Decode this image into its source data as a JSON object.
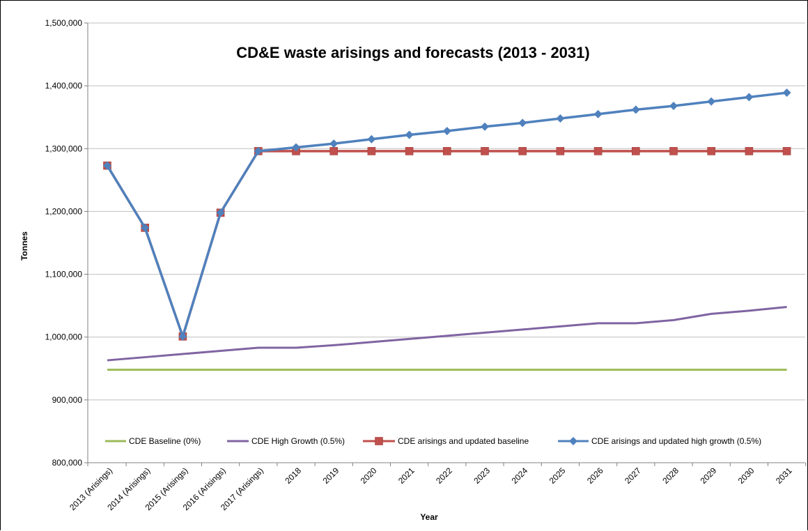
{
  "chart_data": {
    "type": "line",
    "title": "CD&E waste arisings and forecasts (2013 - 2031)",
    "xlabel": "Year",
    "ylabel": "Tonnes",
    "ylim": [
      800000,
      1500000
    ],
    "yticks": [
      800000,
      900000,
      1000000,
      1100000,
      1200000,
      1300000,
      1400000,
      1500000
    ],
    "ytick_labels": [
      "800,000",
      "900,000",
      "1,000,000",
      "1,100,000",
      "1,200,000",
      "1,300,000",
      "1,400,000",
      "1,500,000"
    ],
    "grid": true,
    "legend_position": "bottom-inside",
    "categories": [
      "2013 (Arisings)",
      "2014 (Arisings)",
      "2015 (Arisings)",
      "2016 (Arisings)",
      "2017 (Arisings)",
      "2018",
      "2019",
      "2020",
      "2021",
      "2022",
      "2023",
      "2024",
      "2025",
      "2026",
      "2027",
      "2028",
      "2029",
      "2030",
      "2031"
    ],
    "series": [
      {
        "name": "CDE Baseline (0%)",
        "color": "#9bbb59",
        "marker": "none",
        "values": [
          948000,
          948000,
          948000,
          948000,
          948000,
          948000,
          948000,
          948000,
          948000,
          948000,
          948000,
          948000,
          948000,
          948000,
          948000,
          948000,
          948000,
          948000,
          948000
        ]
      },
      {
        "name": "CDE High Growth (0.5%)",
        "color": "#8064a2",
        "marker": "none",
        "values": [
          963000,
          968000,
          973000,
          978000,
          983000,
          983000,
          987000,
          992000,
          997000,
          1002000,
          1007000,
          1012000,
          1017000,
          1022000,
          1022000,
          1027000,
          1037000,
          1042000,
          1048000
        ]
      },
      {
        "name": "CDE arisings and updated baseline",
        "color": "#c0504d",
        "marker": "square",
        "values": [
          1273000,
          1174000,
          1001000,
          1198000,
          1296000,
          1296000,
          1296000,
          1296000,
          1296000,
          1296000,
          1296000,
          1296000,
          1296000,
          1296000,
          1296000,
          1296000,
          1296000,
          1296000,
          1296000
        ]
      },
      {
        "name": "CDE arisings and updated high growth (0.5%)",
        "color": "#4f81bd",
        "marker": "diamond",
        "values": [
          1273000,
          1174000,
          1001000,
          1198000,
          1296000,
          1302000,
          1308000,
          1315000,
          1322000,
          1328000,
          1335000,
          1341000,
          1348000,
          1355000,
          1362000,
          1368000,
          1375000,
          1382000,
          1389000
        ]
      }
    ]
  }
}
